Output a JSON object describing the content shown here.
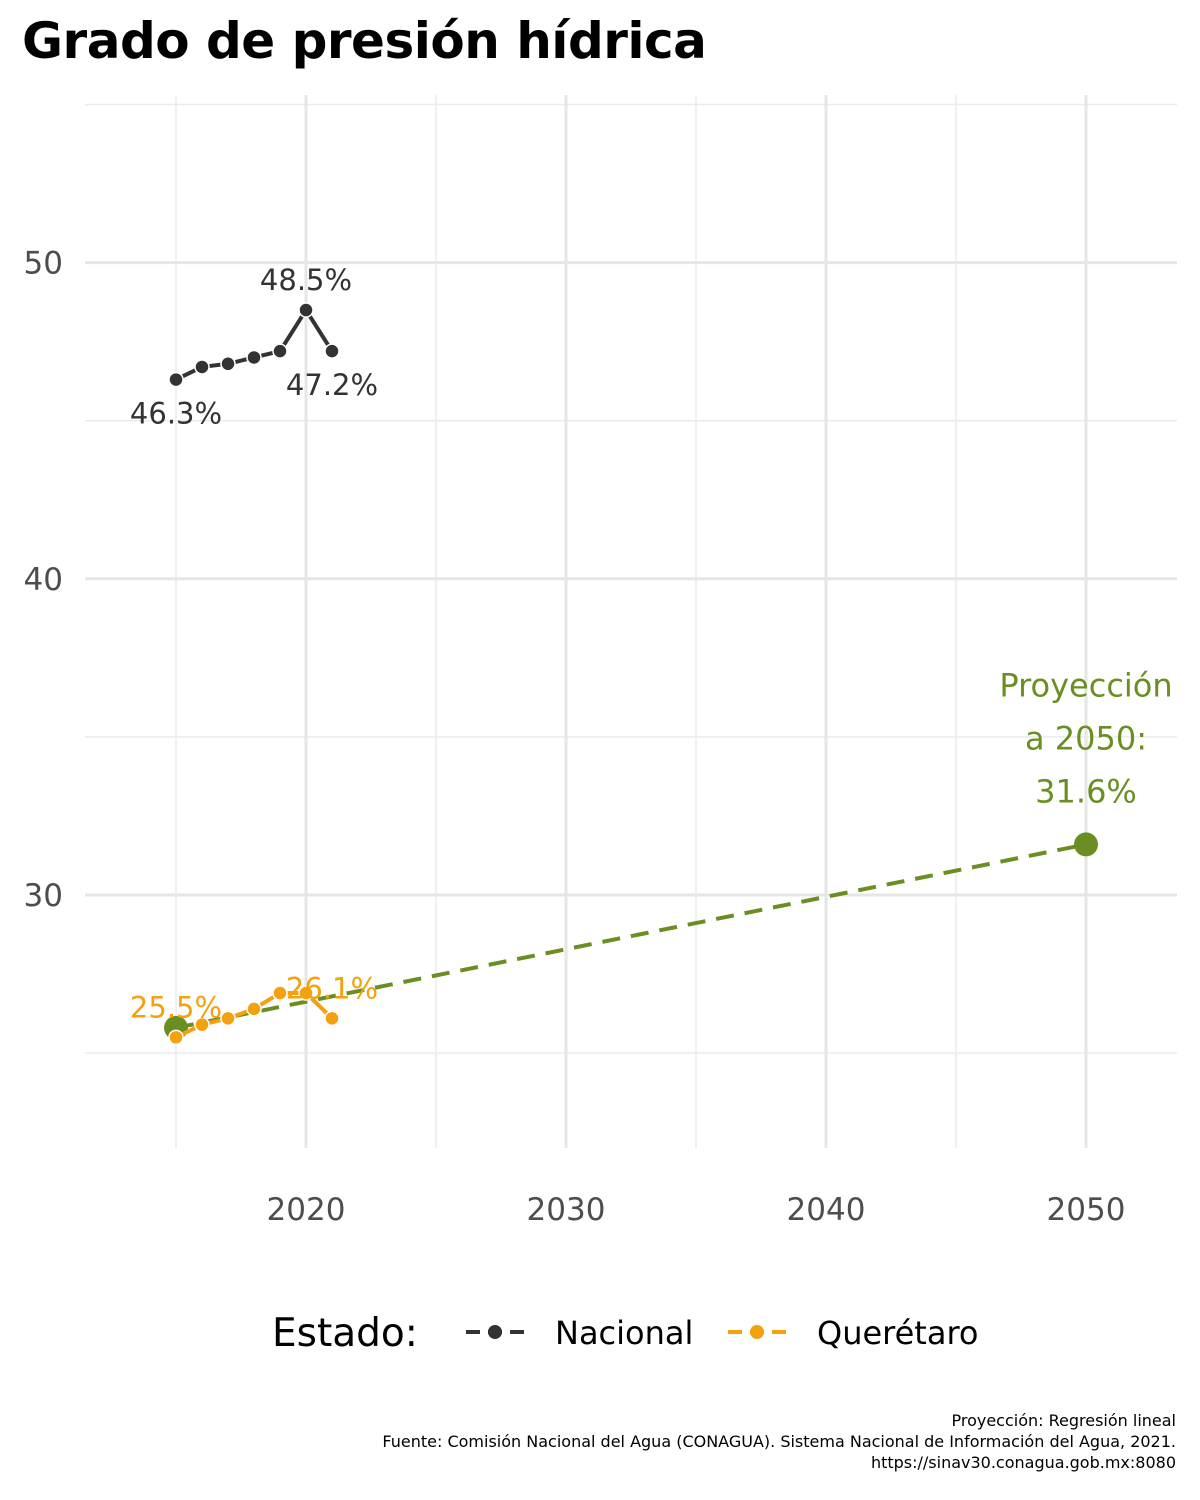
{
  "title": "Grado de presión hídrica",
  "chart_data": {
    "type": "line",
    "xlim": [
      2011.5,
      2053.5
    ],
    "ylim": [
      22.0,
      55.3
    ],
    "x_ticks": [
      2020,
      2030,
      2040,
      2050
    ],
    "x_tick_labels": [
      "2020",
      "2030",
      "2040",
      "2050"
    ],
    "y_ticks": [
      30,
      40,
      50
    ],
    "y_tick_labels": [
      "30",
      "40",
      "50"
    ],
    "x_minor": [
      2015,
      2025,
      2035,
      2045
    ],
    "y_minor": [
      25,
      35,
      45,
      55
    ],
    "xlabel": "",
    "ylabel": "",
    "grid": true,
    "series": [
      {
        "name": "Nacional",
        "color": "#333333",
        "x": [
          2015,
          2016,
          2017,
          2018,
          2019,
          2020,
          2021
        ],
        "y": [
          46.3,
          46.7,
          46.8,
          47.0,
          47.2,
          48.5,
          47.2
        ]
      },
      {
        "name": "Querétaro",
        "color": "#f5a00e",
        "x": [
          2015,
          2016,
          2017,
          2018,
          2019,
          2020,
          2021
        ],
        "y": [
          25.5,
          25.9,
          26.1,
          26.4,
          26.9,
          26.9,
          26.1
        ]
      }
    ],
    "projection": {
      "color": "#6b8e23",
      "x": [
        2015,
        2050
      ],
      "y": [
        25.8,
        31.6
      ]
    },
    "annotations": [
      {
        "text": "46.3%",
        "x": 2015,
        "y": 46.3,
        "color": "#333333",
        "pos": "below"
      },
      {
        "text": "48.5%",
        "x": 2020,
        "y": 48.5,
        "color": "#333333",
        "pos": "above"
      },
      {
        "text": "47.2%",
        "x": 2021,
        "y": 47.2,
        "color": "#333333",
        "pos": "below"
      },
      {
        "text": "25.5%",
        "x": 2015,
        "y": 25.5,
        "color": "#f5a00e",
        "pos": "above"
      },
      {
        "text": "26.1%",
        "x": 2021,
        "y": 26.1,
        "color": "#f5a00e",
        "pos": "above"
      }
    ],
    "projection_label": [
      "Proyección",
      "a 2050:",
      "31.6%"
    ],
    "legend": {
      "title": "Estado:",
      "position": "bottom",
      "items": [
        "Nacional",
        "Querétaro"
      ]
    }
  },
  "caption": [
    "Proyección: Regresión lineal",
    "Fuente: Comisión Nacional del Agua (CONAGUA). Sistema Nacional de Información del Agua, 2021.",
    "https://sinav30.conagua.gob.mx:8080"
  ]
}
